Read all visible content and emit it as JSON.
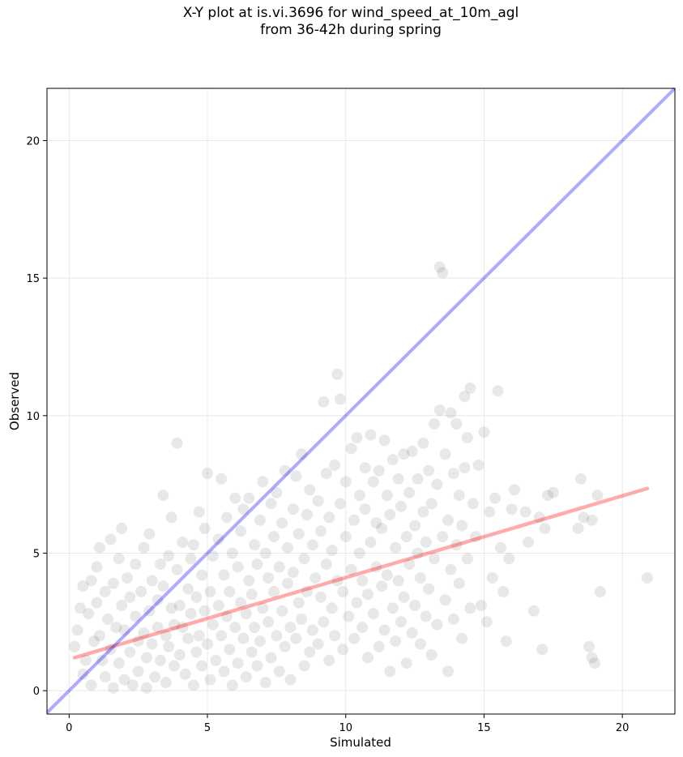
{
  "chart_data": {
    "type": "scatter",
    "title_lines": [
      "X-Y plot at is.vi.3696 for wind_speed_at_10m_agl",
      "from 36-42h during spring"
    ],
    "xlabel": "Simulated",
    "ylabel": "Observed",
    "xlim": [
      -0.8,
      21.9
    ],
    "ylim": [
      -0.85,
      21.9
    ],
    "xticks": [
      0,
      5,
      10,
      15,
      20
    ],
    "yticks": [
      0,
      5,
      10,
      15,
      20
    ],
    "grid": true,
    "colors": {
      "points": "#444444",
      "one_to_one_line": "#0000ff",
      "regression_line": "#ff0000"
    },
    "reference_line": {
      "x": [
        -0.8,
        21.9
      ],
      "y": [
        -0.8,
        21.9
      ]
    },
    "regression_line": {
      "x": [
        0.2,
        20.9
      ],
      "y": [
        1.2,
        7.35
      ]
    },
    "points": [
      [
        0.2,
        1.6
      ],
      [
        0.3,
        2.2
      ],
      [
        0.4,
        3.0
      ],
      [
        0.5,
        3.8
      ],
      [
        0.5,
        0.6
      ],
      [
        0.6,
        1.1
      ],
      [
        0.7,
        2.8
      ],
      [
        0.8,
        4.0
      ],
      [
        0.8,
        0.2
      ],
      [
        0.9,
        1.8
      ],
      [
        1.0,
        4.5
      ],
      [
        1.0,
        3.2
      ],
      [
        1.1,
        2.0
      ],
      [
        1.1,
        5.2
      ],
      [
        1.2,
        1.1
      ],
      [
        1.3,
        3.6
      ],
      [
        1.3,
        0.5
      ],
      [
        1.4,
        2.6
      ],
      [
        1.5,
        5.5
      ],
      [
        1.5,
        1.5
      ],
      [
        1.6,
        3.9
      ],
      [
        1.6,
        0.1
      ],
      [
        1.7,
        2.3
      ],
      [
        1.8,
        4.8
      ],
      [
        1.8,
        1.0
      ],
      [
        1.9,
        5.9
      ],
      [
        1.9,
        3.1
      ],
      [
        2.0,
        0.4
      ],
      [
        2.0,
        2.2
      ],
      [
        2.1,
        4.1
      ],
      [
        2.2,
        1.4
      ],
      [
        2.2,
        3.4
      ],
      [
        2.3,
        0.2
      ],
      [
        2.4,
        2.7
      ],
      [
        2.4,
        4.6
      ],
      [
        2.5,
        1.8
      ],
      [
        2.5,
        0.7
      ],
      [
        2.6,
        3.6
      ],
      [
        2.7,
        2.1
      ],
      [
        2.7,
        5.2
      ],
      [
        2.8,
        1.2
      ],
      [
        2.8,
        0.1
      ],
      [
        2.9,
        5.7
      ],
      [
        2.9,
        2.9
      ],
      [
        3.0,
        4.0
      ],
      [
        3.0,
        1.7
      ],
      [
        3.1,
        0.5
      ],
      [
        3.2,
        3.3
      ],
      [
        3.2,
        2.3
      ],
      [
        3.3,
        4.6
      ],
      [
        3.3,
        1.1
      ],
      [
        3.4,
        7.1
      ],
      [
        3.4,
        3.8
      ],
      [
        3.5,
        2.0
      ],
      [
        3.5,
        0.3
      ],
      [
        3.6,
        4.9
      ],
      [
        3.6,
        1.6
      ],
      [
        3.7,
        3.0
      ],
      [
        3.7,
        6.3
      ],
      [
        3.8,
        2.4
      ],
      [
        3.8,
        0.9
      ],
      [
        3.9,
        9.0
      ],
      [
        3.9,
        4.4
      ],
      [
        4.0,
        3.1
      ],
      [
        4.0,
        1.3
      ],
      [
        4.1,
        5.4
      ],
      [
        4.1,
        2.3
      ],
      [
        4.2,
        0.6
      ],
      [
        4.3,
        3.7
      ],
      [
        4.3,
        1.9
      ],
      [
        4.4,
        4.8
      ],
      [
        4.4,
        2.8
      ],
      [
        4.5,
        0.2
      ],
      [
        4.5,
        5.3
      ],
      [
        4.6,
        1.4
      ],
      [
        4.6,
        3.4
      ],
      [
        4.7,
        6.5
      ],
      [
        4.7,
        2.0
      ],
      [
        4.8,
        4.2
      ],
      [
        4.8,
        0.9
      ],
      [
        4.9,
        2.9
      ],
      [
        4.9,
        5.9
      ],
      [
        5.0,
        1.7
      ],
      [
        5.0,
        7.9
      ],
      [
        5.1,
        3.6
      ],
      [
        5.1,
        0.4
      ],
      [
        5.2,
        2.4
      ],
      [
        5.2,
        4.9
      ],
      [
        5.3,
        1.1
      ],
      [
        5.4,
        3.1
      ],
      [
        5.4,
        5.5
      ],
      [
        5.5,
        2.0
      ],
      [
        5.5,
        7.7
      ],
      [
        5.6,
        0.7
      ],
      [
        5.6,
        4.2
      ],
      [
        5.7,
        2.7
      ],
      [
        5.7,
        6.3
      ],
      [
        5.8,
        1.5
      ],
      [
        5.8,
        3.6
      ],
      [
        5.9,
        5.0
      ],
      [
        5.9,
        0.2
      ],
      [
        6.0,
        2.3
      ],
      [
        6.0,
        7.0
      ],
      [
        6.1,
        4.5
      ],
      [
        6.1,
        1.0
      ],
      [
        6.2,
        3.2
      ],
      [
        6.2,
        5.8
      ],
      [
        6.3,
        1.9
      ],
      [
        6.3,
        6.6
      ],
      [
        6.4,
        2.8
      ],
      [
        6.4,
        0.5
      ],
      [
        6.5,
        4.0
      ],
      [
        6.5,
        7.0
      ],
      [
        6.6,
        1.4
      ],
      [
        6.6,
        3.5
      ],
      [
        6.7,
        5.3
      ],
      [
        6.7,
        2.3
      ],
      [
        6.8,
        0.9
      ],
      [
        6.8,
        4.6
      ],
      [
        6.9,
        6.2
      ],
      [
        6.9,
        1.8
      ],
      [
        7.0,
        3.0
      ],
      [
        7.0,
        7.6
      ],
      [
        7.1,
        0.3
      ],
      [
        7.1,
        5.0
      ],
      [
        7.2,
        2.5
      ],
      [
        7.2,
        4.1
      ],
      [
        7.3,
        6.8
      ],
      [
        7.3,
        1.2
      ],
      [
        7.4,
        3.6
      ],
      [
        7.4,
        5.6
      ],
      [
        7.5,
        2.0
      ],
      [
        7.5,
        7.2
      ],
      [
        7.6,
        0.7
      ],
      [
        7.6,
        4.5
      ],
      [
        7.7,
        2.9
      ],
      [
        7.7,
        6.1
      ],
      [
        7.8,
        1.6
      ],
      [
        7.8,
        8.0
      ],
      [
        7.9,
        3.9
      ],
      [
        7.9,
        5.2
      ],
      [
        8.0,
        2.3
      ],
      [
        8.0,
        0.4
      ],
      [
        8.1,
        6.6
      ],
      [
        8.1,
        4.3
      ],
      [
        8.2,
        7.8
      ],
      [
        8.2,
        1.9
      ],
      [
        8.3,
        3.2
      ],
      [
        8.3,
        5.7
      ],
      [
        8.4,
        8.6
      ],
      [
        8.4,
        2.6
      ],
      [
        8.5,
        4.8
      ],
      [
        8.5,
        0.9
      ],
      [
        8.6,
        6.4
      ],
      [
        8.6,
        3.6
      ],
      [
        8.7,
        1.4
      ],
      [
        8.7,
        7.3
      ],
      [
        8.8,
        5.3
      ],
      [
        8.8,
        2.2
      ],
      [
        8.9,
        4.1
      ],
      [
        9.0,
        6.9
      ],
      [
        9.0,
        1.7
      ],
      [
        9.1,
        3.4
      ],
      [
        9.1,
        5.8
      ],
      [
        9.2,
        10.5
      ],
      [
        9.2,
        2.5
      ],
      [
        9.3,
        7.9
      ],
      [
        9.3,
        4.6
      ],
      [
        9.4,
        1.1
      ],
      [
        9.4,
        6.3
      ],
      [
        9.5,
        3.0
      ],
      [
        9.5,
        5.1
      ],
      [
        9.6,
        8.2
      ],
      [
        9.6,
        2.0
      ],
      [
        9.7,
        4.0
      ],
      [
        9.7,
        11.5
      ],
      [
        9.8,
        6.8
      ],
      [
        9.8,
        10.6
      ],
      [
        9.9,
        3.6
      ],
      [
        9.9,
        1.5
      ],
      [
        10.0,
        5.6
      ],
      [
        10.0,
        7.6
      ],
      [
        10.1,
        2.7
      ],
      [
        10.2,
        4.4
      ],
      [
        10.2,
        8.8
      ],
      [
        10.3,
        6.2
      ],
      [
        10.3,
        1.9
      ],
      [
        10.4,
        3.2
      ],
      [
        10.4,
        9.2
      ],
      [
        10.5,
        5.0
      ],
      [
        10.5,
        7.1
      ],
      [
        10.6,
        2.3
      ],
      [
        10.6,
        4.0
      ],
      [
        10.7,
        8.1
      ],
      [
        10.7,
        6.6
      ],
      [
        10.8,
        1.2
      ],
      [
        10.8,
        3.5
      ],
      [
        10.9,
        9.3
      ],
      [
        10.9,
        5.4
      ],
      [
        11.0,
        7.6
      ],
      [
        11.0,
        2.8
      ],
      [
        11.1,
        4.5
      ],
      [
        11.1,
        6.1
      ],
      [
        11.2,
        8.0
      ],
      [
        11.2,
        1.6
      ],
      [
        11.3,
        3.8
      ],
      [
        11.3,
        5.9
      ],
      [
        11.4,
        9.1
      ],
      [
        11.4,
        2.2
      ],
      [
        11.5,
        7.1
      ],
      [
        11.5,
        4.2
      ],
      [
        11.6,
        0.7
      ],
      [
        11.6,
        6.4
      ],
      [
        11.7,
        3.0
      ],
      [
        11.7,
        8.4
      ],
      [
        11.8,
        5.2
      ],
      [
        11.8,
        1.8
      ],
      [
        11.9,
        7.7
      ],
      [
        11.9,
        4.0
      ],
      [
        12.0,
        2.5
      ],
      [
        12.0,
        6.7
      ],
      [
        12.1,
        8.6
      ],
      [
        12.1,
        3.4
      ],
      [
        12.2,
        5.6
      ],
      [
        12.2,
        1.0
      ],
      [
        12.3,
        7.2
      ],
      [
        12.3,
        4.6
      ],
      [
        12.4,
        2.1
      ],
      [
        12.4,
        8.7
      ],
      [
        12.5,
        6.0
      ],
      [
        12.5,
        3.1
      ],
      [
        12.6,
        5.0
      ],
      [
        12.6,
        7.7
      ],
      [
        12.7,
        1.7
      ],
      [
        12.7,
        4.1
      ],
      [
        12.8,
        6.5
      ],
      [
        12.8,
        9.0
      ],
      [
        12.9,
        2.7
      ],
      [
        12.9,
        5.4
      ],
      [
        13.0,
        8.0
      ],
      [
        13.0,
        3.7
      ],
      [
        13.1,
        6.8
      ],
      [
        13.1,
        1.3
      ],
      [
        13.2,
        4.8
      ],
      [
        13.2,
        9.7
      ],
      [
        13.3,
        7.5
      ],
      [
        13.3,
        2.4
      ],
      [
        13.4,
        10.2
      ],
      [
        13.4,
        15.4
      ],
      [
        13.5,
        15.2
      ],
      [
        13.5,
        5.6
      ],
      [
        13.6,
        3.3
      ],
      [
        13.6,
        8.6
      ],
      [
        13.7,
        0.7
      ],
      [
        13.7,
        6.2
      ],
      [
        13.8,
        10.1
      ],
      [
        13.8,
        4.4
      ],
      [
        13.9,
        7.9
      ],
      [
        13.9,
        2.6
      ],
      [
        14.0,
        5.3
      ],
      [
        14.0,
        9.7
      ],
      [
        14.1,
        3.9
      ],
      [
        14.1,
        7.1
      ],
      [
        14.2,
        6.0
      ],
      [
        14.2,
        1.9
      ],
      [
        14.3,
        8.1
      ],
      [
        14.3,
        10.7
      ],
      [
        14.4,
        4.8
      ],
      [
        14.4,
        9.2
      ],
      [
        14.5,
        11.0
      ],
      [
        14.5,
        3.0
      ],
      [
        14.6,
        6.8
      ],
      [
        14.7,
        5.6
      ],
      [
        14.8,
        8.2
      ],
      [
        14.9,
        3.1
      ],
      [
        15.0,
        9.4
      ],
      [
        15.1,
        2.5
      ],
      [
        15.2,
        6.5
      ],
      [
        15.3,
        4.1
      ],
      [
        15.4,
        7.0
      ],
      [
        15.5,
        10.9
      ],
      [
        15.6,
        5.2
      ],
      [
        15.7,
        3.6
      ],
      [
        15.8,
        1.8
      ],
      [
        15.9,
        4.8
      ],
      [
        16.0,
        6.6
      ],
      [
        16.1,
        7.3
      ],
      [
        16.5,
        6.5
      ],
      [
        16.6,
        5.4
      ],
      [
        16.8,
        2.9
      ],
      [
        17.0,
        6.3
      ],
      [
        17.1,
        1.5
      ],
      [
        17.2,
        5.9
      ],
      [
        17.3,
        7.1
      ],
      [
        17.5,
        7.2
      ],
      [
        18.4,
        5.9
      ],
      [
        18.5,
        7.7
      ],
      [
        18.6,
        6.3
      ],
      [
        18.8,
        1.6
      ],
      [
        18.9,
        1.2
      ],
      [
        18.9,
        6.2
      ],
      [
        19.0,
        1.0
      ],
      [
        19.1,
        7.1
      ],
      [
        19.2,
        3.6
      ],
      [
        20.9,
        4.1
      ]
    ]
  }
}
